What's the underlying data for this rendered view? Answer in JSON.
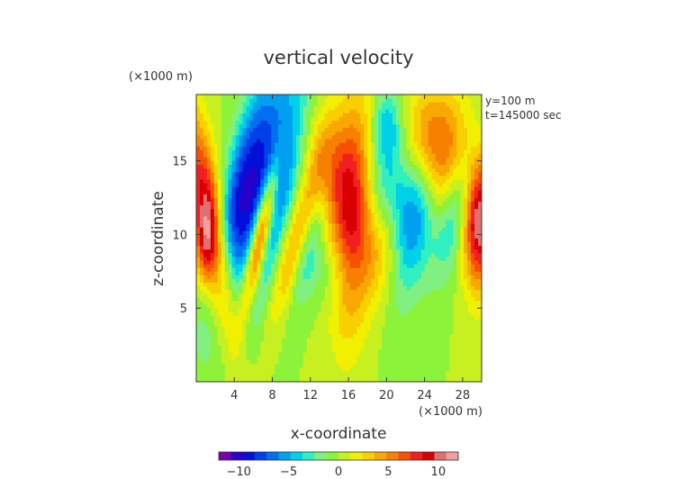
{
  "chart_data": {
    "type": "heatmap",
    "title": "vertical velocity",
    "xlabel": "x-coordinate",
    "ylabel": "z-coordinate",
    "x_unit_label": "(×1000 m)",
    "y_unit_label": "(×1000 m)",
    "annotations": [
      "y=100 m",
      "t=145000 sec"
    ],
    "xlim": [
      0,
      30
    ],
    "ylim": [
      0,
      19.5
    ],
    "x_ticks": [
      4,
      8,
      12,
      16,
      20,
      24,
      28
    ],
    "y_ticks": [
      5,
      10,
      15
    ],
    "grid": false,
    "colorbar": {
      "range": [
        -12,
        12
      ],
      "ticks": [
        -10,
        -5,
        0,
        5,
        10
      ],
      "colors": [
        "#7a00b0",
        "#2a00c8",
        "#0010d8",
        "#0040e8",
        "#0070f0",
        "#00a0f0",
        "#00d0e8",
        "#30f0c0",
        "#80f080",
        "#8cf23a",
        "#c8f020",
        "#f0f000",
        "#f8d000",
        "#f8a800",
        "#f88000",
        "#f85000",
        "#f02020",
        "#d80000",
        "#e07070",
        "#f0a0a0"
      ]
    },
    "features": [
      {
        "x": 1.5,
        "z": 10.5,
        "value": 10,
        "sx": 1.2,
        "sz": 5.5,
        "angle": -15
      },
      {
        "x": 1.0,
        "z": 9.0,
        "value": 4,
        "sx": 0.8,
        "sz": 2.0,
        "angle": 0
      },
      {
        "x": 4.5,
        "z": 13.0,
        "value": -7,
        "sx": 1.3,
        "sz": 6.0,
        "angle": 20
      },
      {
        "x": 7.5,
        "z": 12.5,
        "value": -9,
        "sx": 1.8,
        "sz": 6.5,
        "angle": 20
      },
      {
        "x": 6.7,
        "z": 9.8,
        "value": 13,
        "sx": 0.65,
        "sz": 3.6,
        "angle": 18
      },
      {
        "x": 10.5,
        "z": 9.5,
        "value": 6,
        "sx": 1.0,
        "sz": 4.0,
        "angle": 25
      },
      {
        "x": 12.0,
        "z": 10.0,
        "value": -4,
        "sx": 0.9,
        "sz": 3.5,
        "angle": 20
      },
      {
        "x": 14.0,
        "z": 14.5,
        "value": 5,
        "sx": 1.8,
        "sz": 3.0,
        "angle": -10
      },
      {
        "x": 16.5,
        "z": 11.5,
        "value": 8,
        "sx": 1.5,
        "sz": 5.5,
        "angle": 5
      },
      {
        "x": 19.5,
        "z": 9.0,
        "value": 5,
        "sx": 1.8,
        "sz": 2.8,
        "angle": 20
      },
      {
        "x": 20.5,
        "z": 14.5,
        "value": -6,
        "sx": 2.0,
        "sz": 4.0,
        "angle": 10
      },
      {
        "x": 23.0,
        "z": 11.5,
        "value": -7,
        "sx": 1.5,
        "sz": 4.0,
        "angle": 15
      },
      {
        "x": 24.5,
        "z": 16.0,
        "value": 9,
        "sx": 2.6,
        "sz": 3.0,
        "angle": -10
      },
      {
        "x": 27.5,
        "z": 12.0,
        "value": -5,
        "sx": 1.2,
        "sz": 3.5,
        "angle": 20
      },
      {
        "x": 29.8,
        "z": 11.0,
        "value": 11,
        "sx": 1.3,
        "sz": 3.2,
        "angle": 0
      },
      {
        "x": 14.5,
        "z": 7.5,
        "value": -2,
        "sx": 2.5,
        "sz": 1.8,
        "angle": 0
      },
      {
        "x": 20.0,
        "z": 17.5,
        "value": -3,
        "sx": 1.0,
        "sz": 1.5,
        "angle": 0
      }
    ]
  }
}
